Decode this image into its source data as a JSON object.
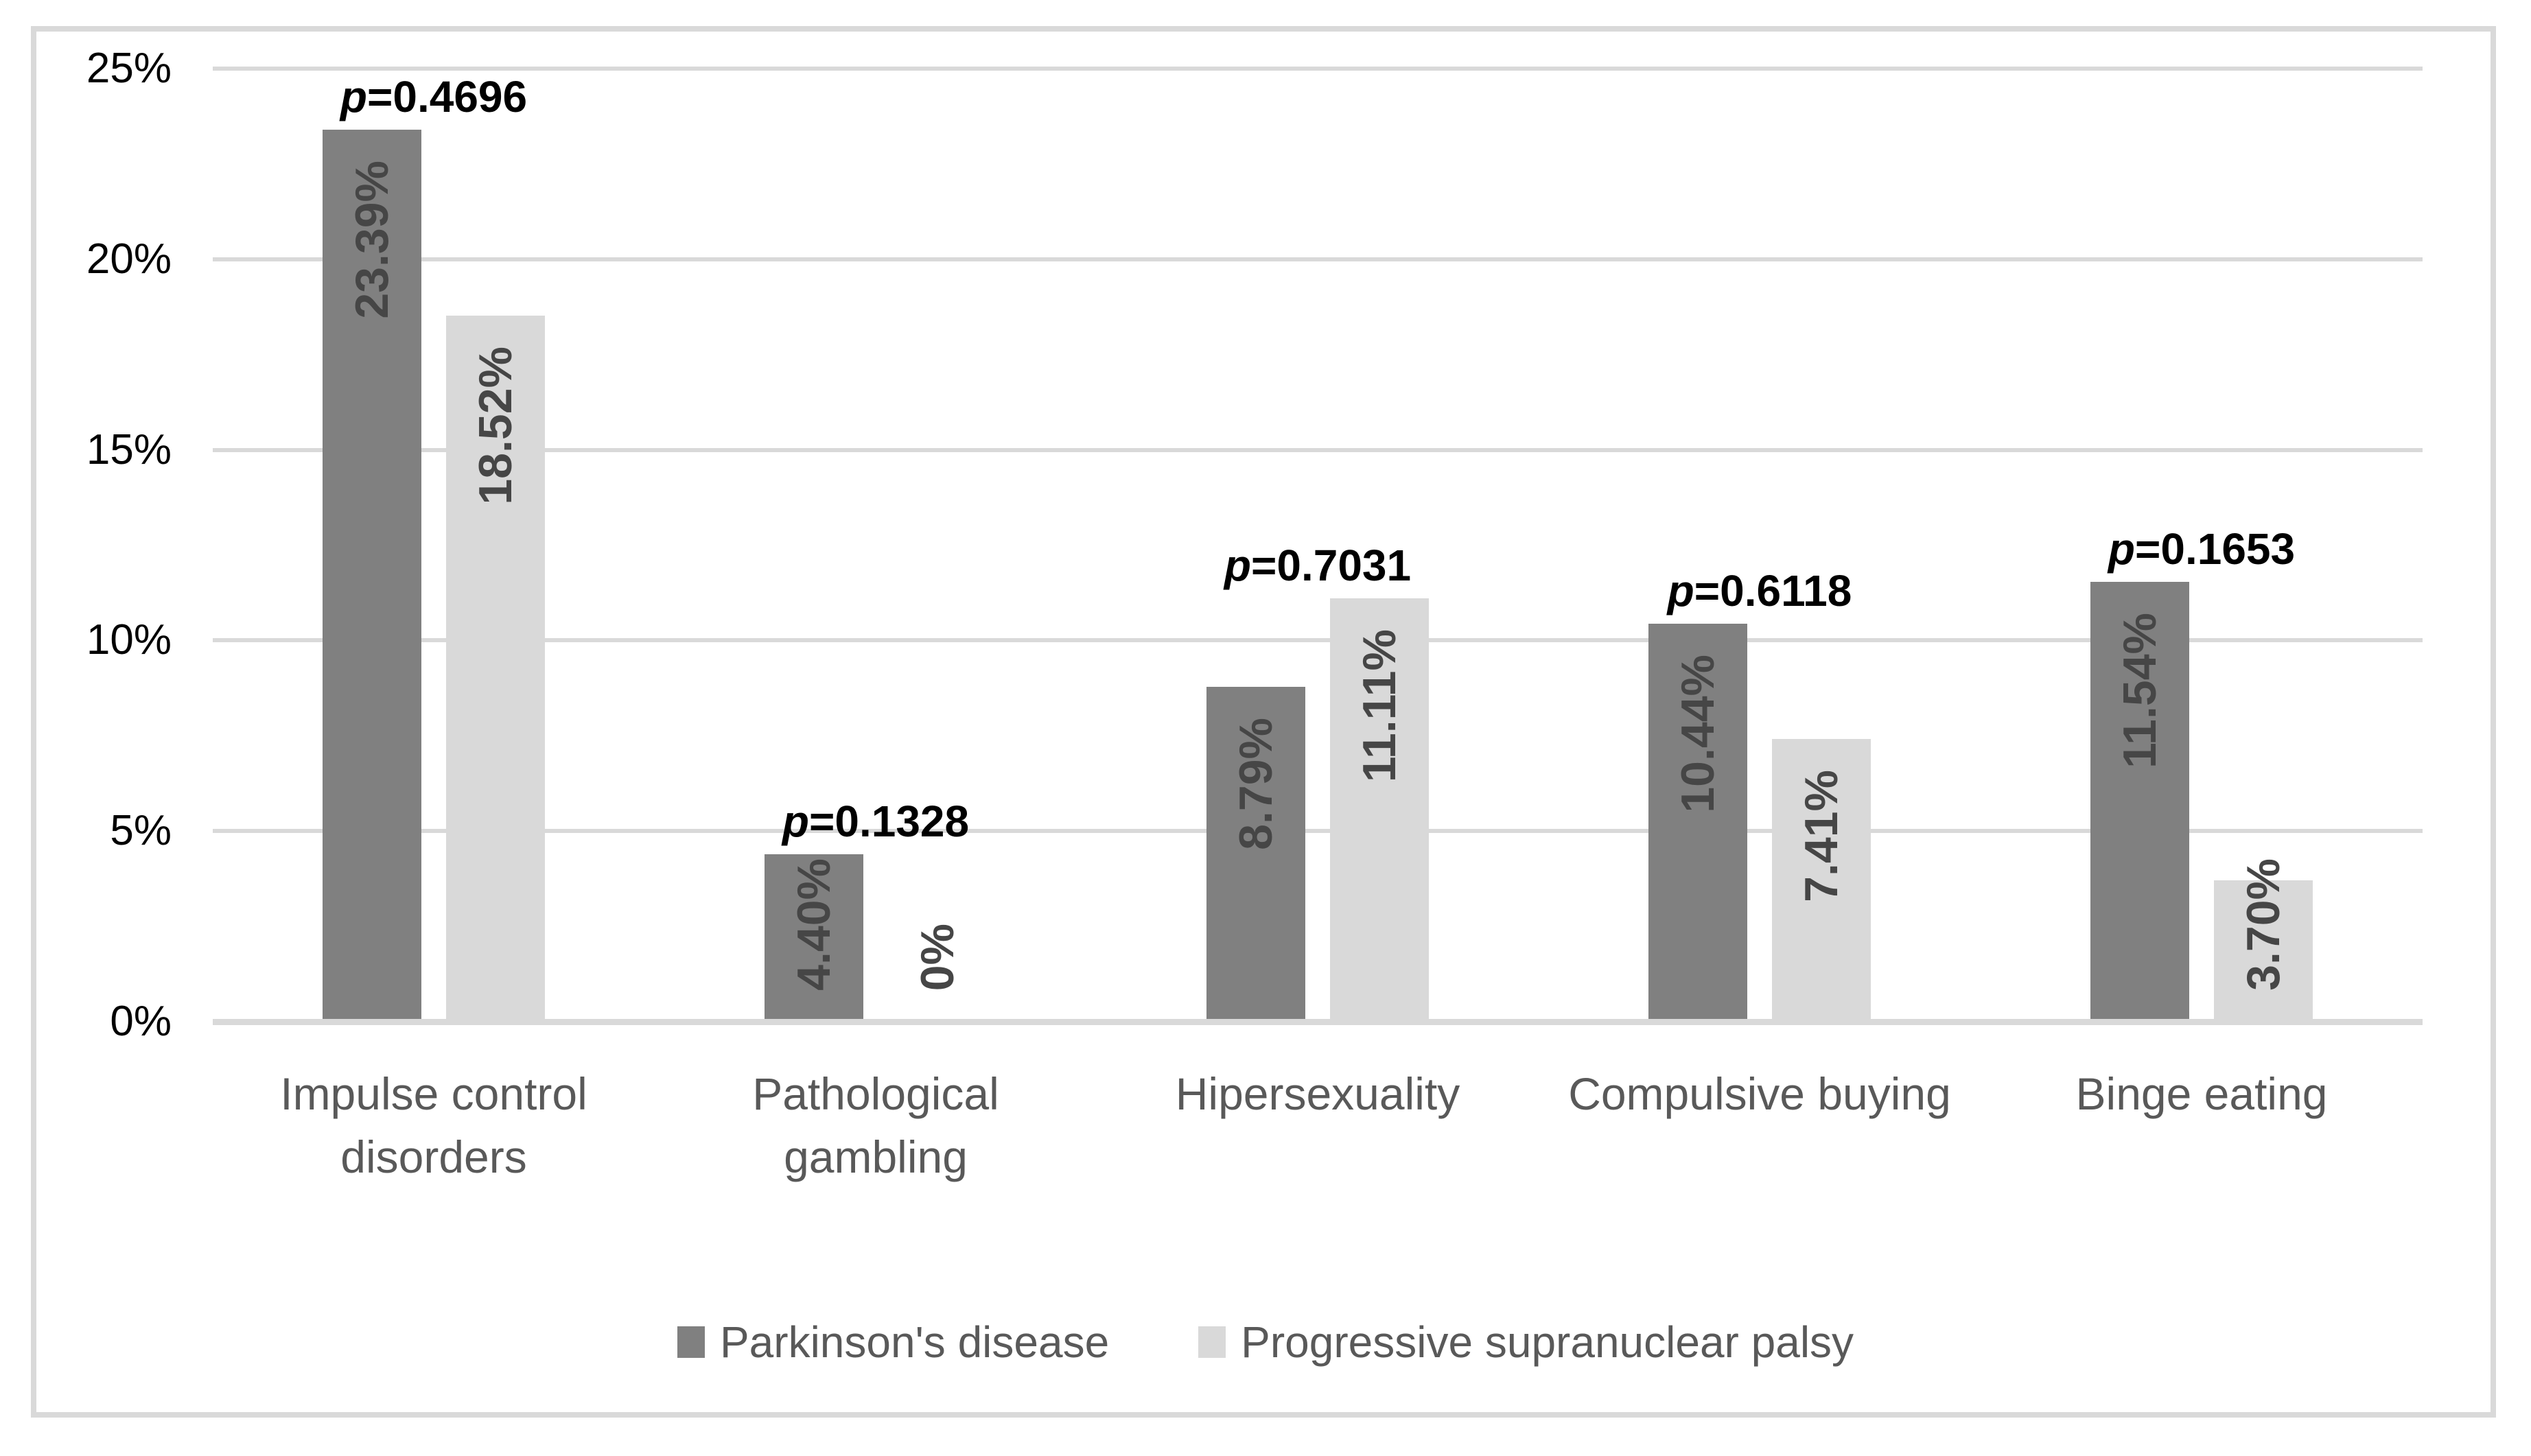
{
  "chart_data": {
    "type": "bar",
    "title": "",
    "categories": [
      {
        "label": "Impulse control disorders",
        "lines": [
          "Impulse control",
          "disorders"
        ]
      },
      {
        "label": "Pathological gambling",
        "lines": [
          "Pathological",
          "gambling"
        ]
      },
      {
        "label": "Hipersexuality",
        "lines": [
          "Hipersexuality"
        ]
      },
      {
        "label": "Compulsive buying",
        "lines": [
          "Compulsive buying"
        ]
      },
      {
        "label": "Binge eating",
        "lines": [
          "Binge eating"
        ]
      }
    ],
    "series": [
      {
        "name": "Parkinson's disease",
        "color": "#808080",
        "values": [
          23.39,
          4.4,
          8.79,
          10.44,
          11.54
        ],
        "labels": [
          "23.39%",
          "4.40%",
          "8.79%",
          "10.44%",
          "11.54%"
        ]
      },
      {
        "name": "Progressive supranuclear palsy",
        "color": "#d9d9d9",
        "values": [
          18.52,
          0,
          11.11,
          7.41,
          3.7
        ],
        "labels": [
          "18.52%",
          "0%",
          "11.11%",
          "7.41%",
          "3.70%"
        ]
      }
    ],
    "p_values": [
      {
        "prefix": "p",
        "value": "=0.4696"
      },
      {
        "prefix": "p",
        "value": "=0.1328"
      },
      {
        "prefix": "p",
        "value": "=0.7031"
      },
      {
        "prefix": "p",
        "value": "=0.6118"
      },
      {
        "prefix": "p",
        "value": "=0.1653"
      }
    ],
    "y_axis": {
      "ticks": [
        "0%",
        "5%",
        "10%",
        "15%",
        "20%",
        "25%"
      ],
      "tick_values": [
        0,
        5,
        10,
        15,
        20,
        25
      ],
      "max": 25
    },
    "grid": true,
    "legend_position": "bottom"
  },
  "styles": {
    "background": "#ffffff",
    "frame_border_color": "#d9d9d9",
    "grid_color": "#d9d9d9",
    "tick_color": "#000000",
    "p_color": "#000000",
    "value_label_color": "#464646",
    "category_color": "#595959",
    "legend_text_color": "#595959"
  }
}
